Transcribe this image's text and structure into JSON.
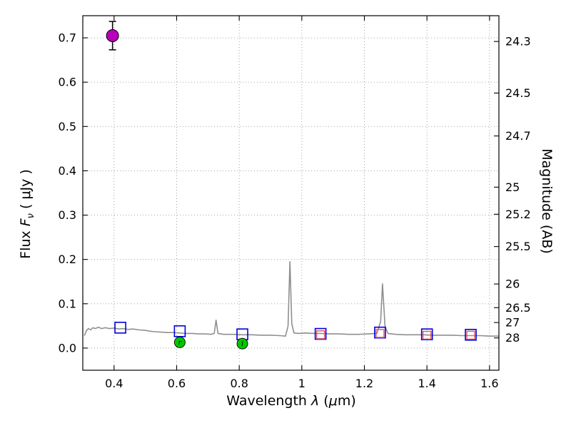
{
  "figure": {
    "bg_color": "#ffffff",
    "frame_color": "#000000",
    "grid_color": "#999999",
    "tick_color": "#000000"
  },
  "labels": {
    "xlabel": {
      "word": "Wavelength ",
      "lambda": "λ",
      "open": " (",
      "mu": "μ",
      "close": "m)"
    },
    "ylabel_left": {
      "word": "Flux ",
      "F": "F",
      "nu": "ν",
      "unit": " ( μJy )"
    },
    "ylabel_right": "Magnitude (AB)"
  },
  "chart_data": {
    "type": "line",
    "title": "",
    "xlabel": "Wavelength λ (μm)",
    "ylabel_left": "Flux F_ν ( μJy )",
    "ylabel_right": "Magnitude (AB)",
    "xlim": [
      0.3,
      1.63
    ],
    "ylim": [
      -0.05,
      0.75
    ],
    "grid": true,
    "mag_zeropoint": 23.9,
    "x_ticks": [
      {
        "v": 0.4,
        "label": "0.4"
      },
      {
        "v": 0.6,
        "label": "0.6"
      },
      {
        "v": 0.8,
        "label": "0.8"
      },
      {
        "v": 1.0,
        "label": "1"
      },
      {
        "v": 1.2,
        "label": "1.2"
      },
      {
        "v": 1.4,
        "label": "1.4"
      },
      {
        "v": 1.6,
        "label": "1.6"
      }
    ],
    "y_ticks_left": [
      {
        "v": 0.0,
        "label": "0.0"
      },
      {
        "v": 0.1,
        "label": "0.1"
      },
      {
        "v": 0.2,
        "label": "0.2"
      },
      {
        "v": 0.3,
        "label": "0.3"
      },
      {
        "v": 0.4,
        "label": "0.4"
      },
      {
        "v": 0.5,
        "label": "0.5"
      },
      {
        "v": 0.6,
        "label": "0.6"
      },
      {
        "v": 0.7,
        "label": "0.7"
      }
    ],
    "y_ticks_right": [
      {
        "mag": 24.3,
        "label": "24.3"
      },
      {
        "mag": 24.5,
        "label": "24.5"
      },
      {
        "mag": 24.7,
        "label": "24.7"
      },
      {
        "mag": 25.0,
        "label": "25"
      },
      {
        "mag": 25.2,
        "label": "25.2"
      },
      {
        "mag": 25.5,
        "label": "25.5"
      },
      {
        "mag": 26.0,
        "label": "26"
      },
      {
        "mag": 26.5,
        "label": "26.5"
      },
      {
        "mag": 27.0,
        "label": "27"
      },
      {
        "mag": 28.0,
        "label": "28"
      }
    ],
    "series": [
      {
        "name": "model-spectrum",
        "type": "line",
        "color": "#8f8f8f",
        "width": 1.6,
        "points": [
          [
            0.305,
            0.028
          ],
          [
            0.312,
            0.04
          ],
          [
            0.318,
            0.044
          ],
          [
            0.325,
            0.041
          ],
          [
            0.332,
            0.046
          ],
          [
            0.34,
            0.044
          ],
          [
            0.35,
            0.047
          ],
          [
            0.36,
            0.044
          ],
          [
            0.372,
            0.046
          ],
          [
            0.385,
            0.044
          ],
          [
            0.4,
            0.045
          ],
          [
            0.415,
            0.043
          ],
          [
            0.43,
            0.044
          ],
          [
            0.445,
            0.042
          ],
          [
            0.46,
            0.043
          ],
          [
            0.48,
            0.041
          ],
          [
            0.5,
            0.04
          ],
          [
            0.515,
            0.038
          ],
          [
            0.53,
            0.037
          ],
          [
            0.55,
            0.036
          ],
          [
            0.57,
            0.035
          ],
          [
            0.59,
            0.035
          ],
          [
            0.61,
            0.034
          ],
          [
            0.63,
            0.033
          ],
          [
            0.65,
            0.033
          ],
          [
            0.67,
            0.032
          ],
          [
            0.69,
            0.032
          ],
          [
            0.71,
            0.031
          ],
          [
            0.72,
            0.033
          ],
          [
            0.726,
            0.063
          ],
          [
            0.732,
            0.033
          ],
          [
            0.75,
            0.031
          ],
          [
            0.78,
            0.031
          ],
          [
            0.81,
            0.03
          ],
          [
            0.84,
            0.03
          ],
          [
            0.87,
            0.029
          ],
          [
            0.9,
            0.029
          ],
          [
            0.93,
            0.028
          ],
          [
            0.948,
            0.027
          ],
          [
            0.956,
            0.05
          ],
          [
            0.962,
            0.195
          ],
          [
            0.968,
            0.055
          ],
          [
            0.975,
            0.034
          ],
          [
            0.99,
            0.033
          ],
          [
            1.01,
            0.034
          ],
          [
            1.04,
            0.033
          ],
          [
            1.06,
            0.033
          ],
          [
            1.09,
            0.032
          ],
          [
            1.12,
            0.032
          ],
          [
            1.15,
            0.031
          ],
          [
            1.18,
            0.031
          ],
          [
            1.21,
            0.032
          ],
          [
            1.24,
            0.033
          ],
          [
            1.252,
            0.06
          ],
          [
            1.258,
            0.145
          ],
          [
            1.266,
            0.05
          ],
          [
            1.275,
            0.033
          ],
          [
            1.3,
            0.031
          ],
          [
            1.33,
            0.03
          ],
          [
            1.36,
            0.03
          ],
          [
            1.39,
            0.03
          ],
          [
            1.42,
            0.029
          ],
          [
            1.45,
            0.029
          ],
          [
            1.48,
            0.029
          ],
          [
            1.51,
            0.028
          ],
          [
            1.54,
            0.028
          ],
          [
            1.57,
            0.028
          ],
          [
            1.6,
            0.027
          ],
          [
            1.63,
            0.027
          ]
        ]
      },
      {
        "name": "model-photometry-squares",
        "type": "open-square",
        "color": "#0000dd",
        "size": 15,
        "stroke_width": 1.6,
        "points": [
          [
            0.42,
            0.046
          ],
          [
            0.61,
            0.038
          ],
          [
            0.81,
            0.031
          ],
          [
            1.06,
            0.032
          ],
          [
            1.25,
            0.035
          ],
          [
            1.4,
            0.031
          ],
          [
            1.54,
            0.03
          ]
        ]
      },
      {
        "name": "observed-photometry-squares",
        "type": "open-square",
        "color": "#e05566",
        "size": 11,
        "stroke_width": 1.4,
        "points": [
          [
            1.06,
            0.03
          ],
          [
            1.25,
            0.033
          ],
          [
            1.4,
            0.029
          ],
          [
            1.54,
            0.029
          ]
        ]
      },
      {
        "name": "observed-band-circles",
        "type": "circle",
        "color": "#00c800",
        "edge_color": "#000000",
        "radius": 7.5,
        "points": [
          {
            "x": 0.61,
            "y": 0.013,
            "label": "r"
          },
          {
            "x": 0.81,
            "y": 0.01,
            "label": "i"
          }
        ]
      },
      {
        "name": "detected-point",
        "type": "circle-errorbar",
        "color": "#b800b8",
        "edge_color": "#000000",
        "radius": 8.5,
        "points": [
          {
            "x": 0.395,
            "y": 0.705,
            "yerr": 0.032
          }
        ]
      }
    ]
  }
}
